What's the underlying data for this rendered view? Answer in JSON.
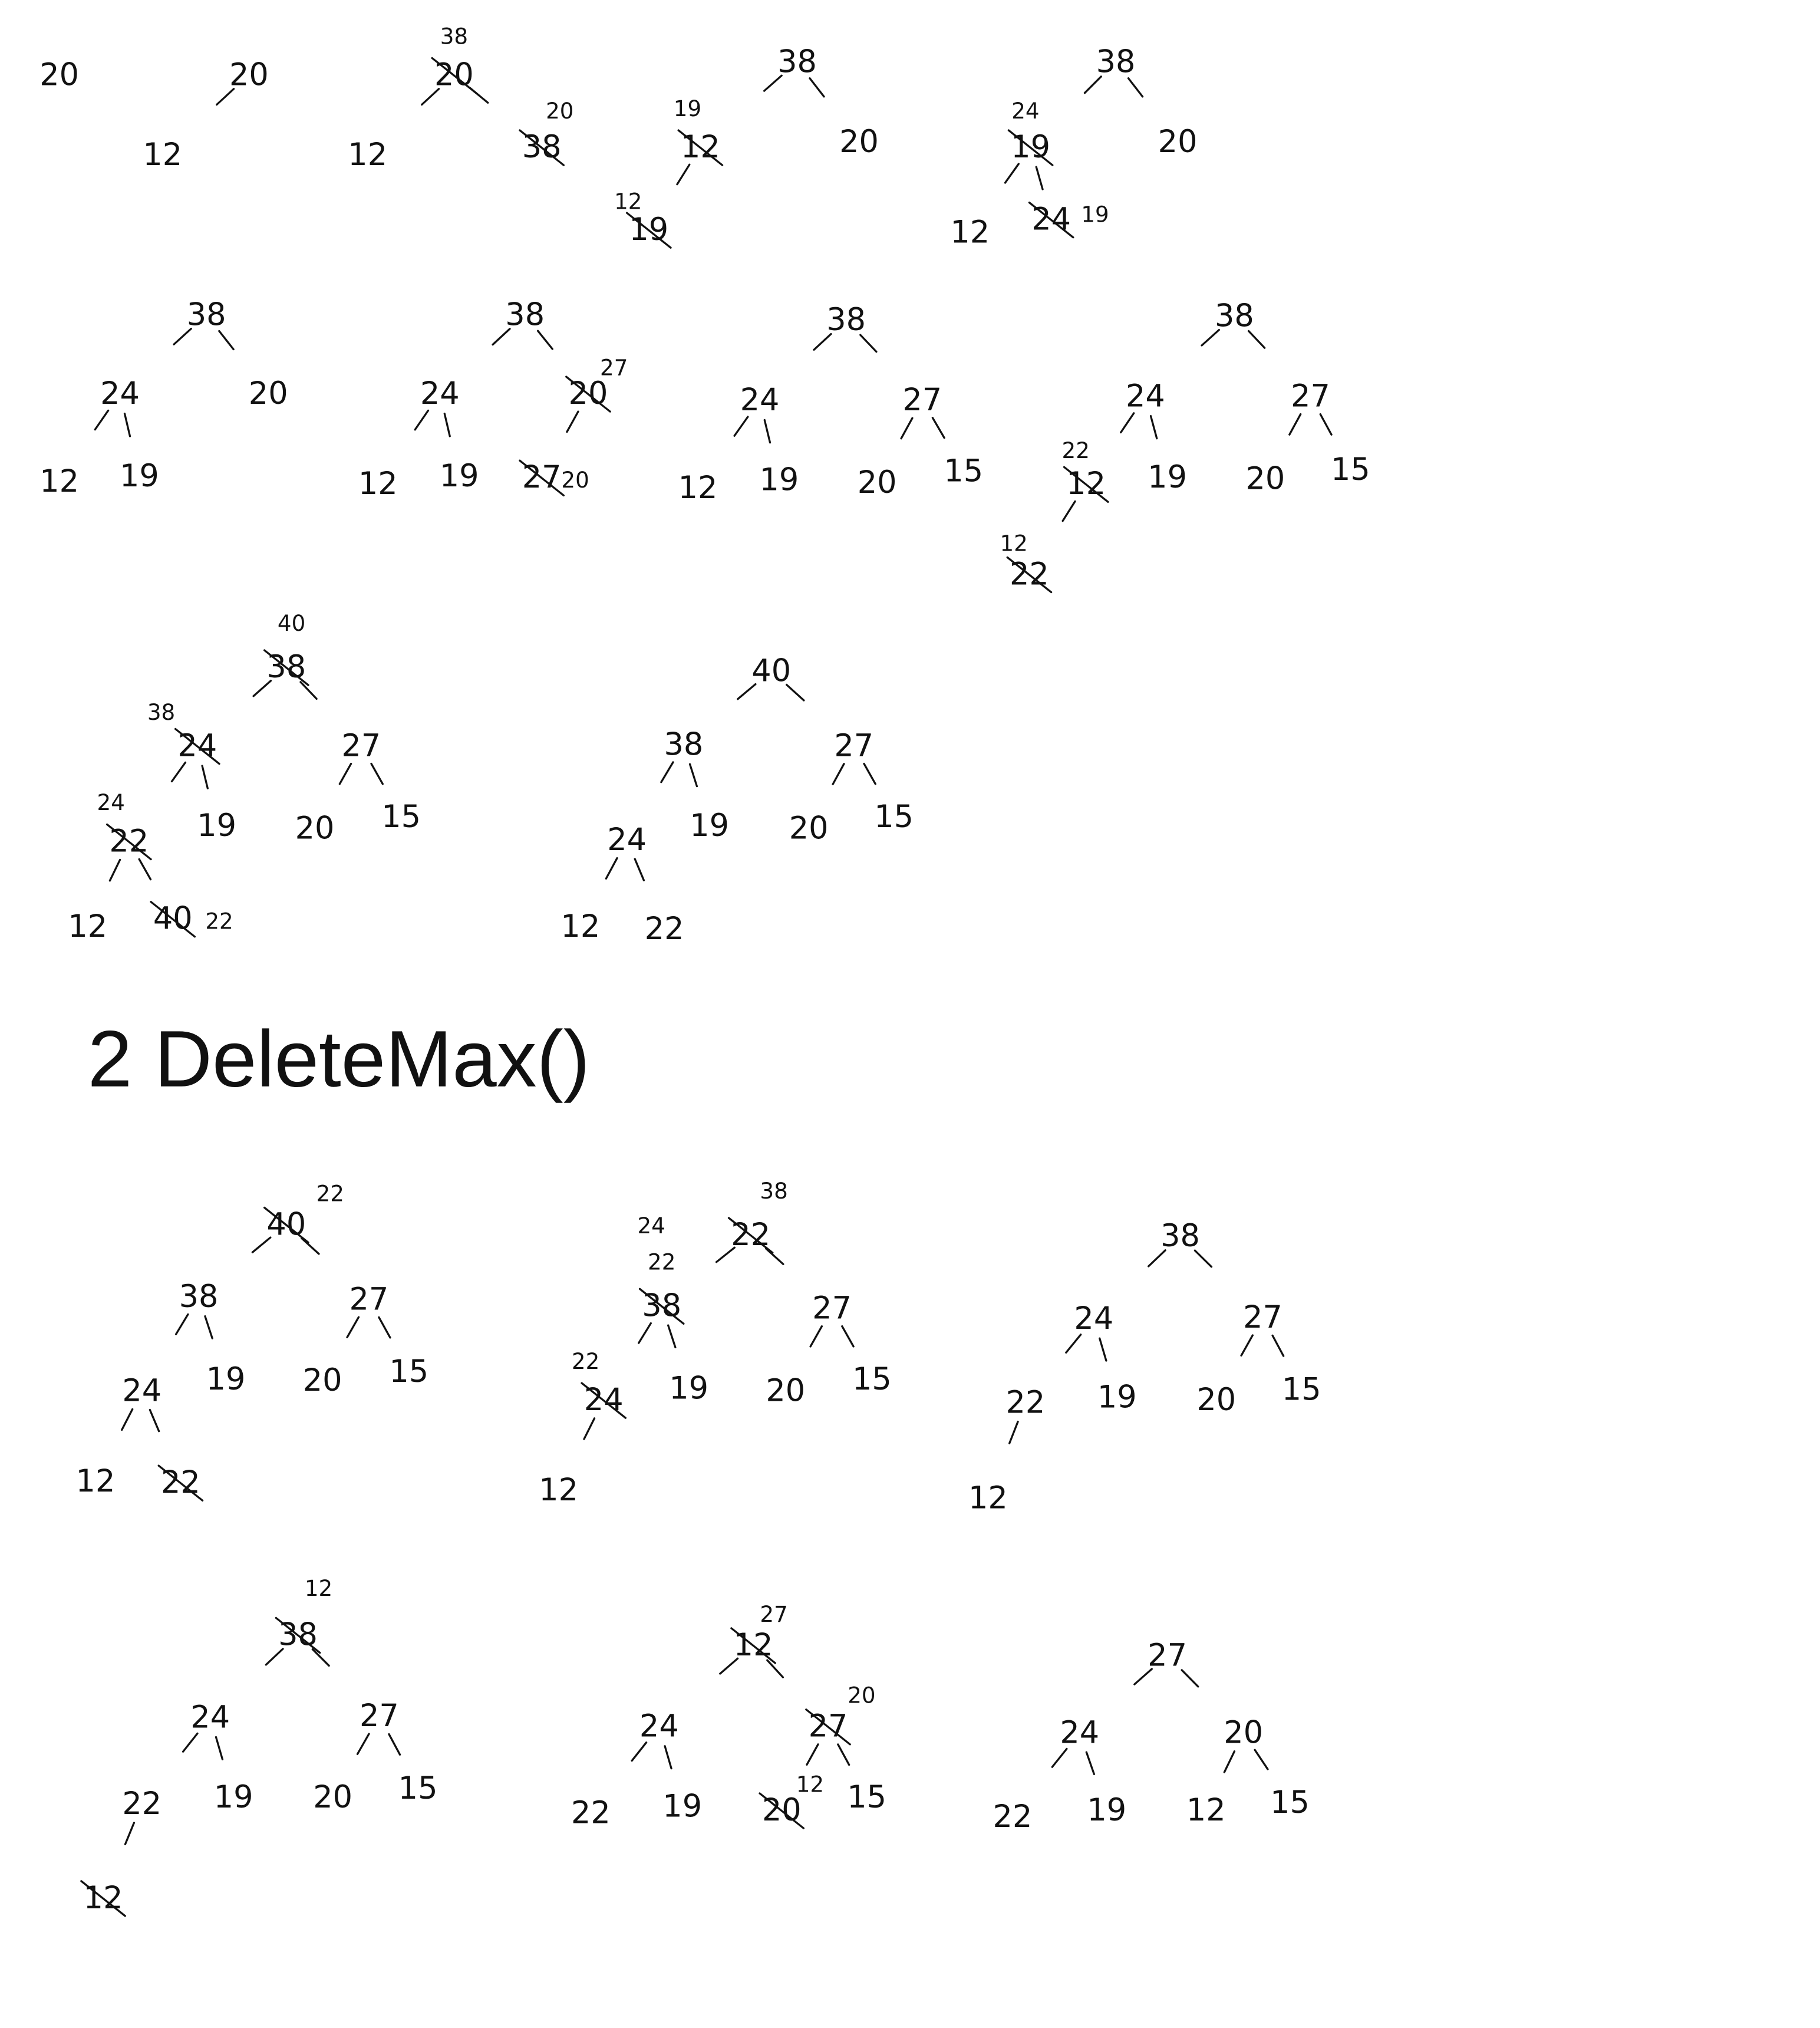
{
  "heading": "2 DeleteMax()",
  "insert_steps": [
    {
      "id": "i1",
      "nodes": [
        {
          "v": "20"
        }
      ]
    },
    {
      "id": "i2",
      "nodes": [
        {
          "v": "20"
        },
        {
          "v": "12"
        }
      ]
    },
    {
      "id": "i3",
      "nodes": [
        {
          "v": "20",
          "crossed": true,
          "note": "38"
        },
        {
          "v": "12"
        },
        {
          "v": "38",
          "crossed": true,
          "note": "20"
        }
      ]
    },
    {
      "id": "i4",
      "nodes": [
        {
          "v": "38"
        },
        {
          "v": "12",
          "crossed": true,
          "note": "19"
        },
        {
          "v": "20"
        },
        {
          "v": "19",
          "crossed": true,
          "note": "12"
        }
      ]
    },
    {
      "id": "i5",
      "nodes": [
        {
          "v": "38"
        },
        {
          "v": "19",
          "crossed": true,
          "note": "24"
        },
        {
          "v": "20"
        },
        {
          "v": "12"
        },
        {
          "v": "24",
          "crossed": true,
          "note": "19"
        }
      ]
    },
    {
      "id": "i6",
      "nodes": [
        {
          "v": "38"
        },
        {
          "v": "24"
        },
        {
          "v": "20"
        },
        {
          "v": "12"
        },
        {
          "v": "19"
        }
      ]
    },
    {
      "id": "i7",
      "nodes": [
        {
          "v": "38"
        },
        {
          "v": "24"
        },
        {
          "v": "20",
          "crossed": true,
          "note": "27"
        },
        {
          "v": "12"
        },
        {
          "v": "19"
        },
        {
          "v": "27",
          "crossed": true,
          "note": "20"
        }
      ]
    },
    {
      "id": "i8",
      "nodes": [
        {
          "v": "38"
        },
        {
          "v": "24"
        },
        {
          "v": "27"
        },
        {
          "v": "12"
        },
        {
          "v": "19"
        },
        {
          "v": "20"
        },
        {
          "v": "15"
        }
      ]
    },
    {
      "id": "i9",
      "nodes": [
        {
          "v": "38"
        },
        {
          "v": "24"
        },
        {
          "v": "27"
        },
        {
          "v": "12",
          "crossed": true,
          "note": "22"
        },
        {
          "v": "19"
        },
        {
          "v": "20"
        },
        {
          "v": "15"
        },
        {
          "v": "22",
          "crossed": true,
          "note": "12"
        }
      ]
    },
    {
      "id": "i10",
      "nodes": [
        {
          "v": "38",
          "crossed": true,
          "note": "40"
        },
        {
          "v": "24",
          "crossed": true,
          "note": "38"
        },
        {
          "v": "27"
        },
        {
          "v": "22",
          "crossed": true,
          "note": "24"
        },
        {
          "v": "19"
        },
        {
          "v": "20"
        },
        {
          "v": "15"
        },
        {
          "v": "12"
        },
        {
          "v": "40",
          "crossed": true,
          "note": "22"
        }
      ]
    },
    {
      "id": "i11",
      "nodes": [
        {
          "v": "40"
        },
        {
          "v": "38"
        },
        {
          "v": "27"
        },
        {
          "v": "24"
        },
        {
          "v": "19"
        },
        {
          "v": "20"
        },
        {
          "v": "15"
        },
        {
          "v": "12"
        },
        {
          "v": "22"
        }
      ]
    }
  ],
  "delete_steps": [
    {
      "id": "d1",
      "nodes": [
        {
          "v": "40",
          "crossed": true,
          "note": "22"
        },
        {
          "v": "38"
        },
        {
          "v": "27"
        },
        {
          "v": "24"
        },
        {
          "v": "19"
        },
        {
          "v": "20"
        },
        {
          "v": "15"
        },
        {
          "v": "12"
        },
        {
          "v": "22",
          "crossed": true
        }
      ]
    },
    {
      "id": "d2",
      "nodes": [
        {
          "v": "22",
          "crossed": true,
          "note": "38"
        },
        {
          "v": "38",
          "crossed": true,
          "notes": [
            "24",
            "22"
          ]
        },
        {
          "v": "27"
        },
        {
          "v": "24",
          "crossed": true,
          "note": "22"
        },
        {
          "v": "19"
        },
        {
          "v": "20"
        },
        {
          "v": "15"
        },
        {
          "v": "12"
        }
      ]
    },
    {
      "id": "d3",
      "nodes": [
        {
          "v": "38"
        },
        {
          "v": "24"
        },
        {
          "v": "27"
        },
        {
          "v": "22"
        },
        {
          "v": "19"
        },
        {
          "v": "20"
        },
        {
          "v": "15"
        },
        {
          "v": "12"
        }
      ]
    },
    {
      "id": "d4",
      "nodes": [
        {
          "v": "38",
          "crossed": true,
          "note": "12"
        },
        {
          "v": "24"
        },
        {
          "v": "27"
        },
        {
          "v": "22"
        },
        {
          "v": "19"
        },
        {
          "v": "20"
        },
        {
          "v": "15"
        },
        {
          "v": "12",
          "crossed": true
        }
      ]
    },
    {
      "id": "d5",
      "nodes": [
        {
          "v": "12",
          "crossed": true,
          "note": "27"
        },
        {
          "v": "24"
        },
        {
          "v": "27",
          "crossed": true,
          "note": "20"
        },
        {
          "v": "22"
        },
        {
          "v": "19"
        },
        {
          "v": "20",
          "crossed": true,
          "note": "12"
        },
        {
          "v": "15"
        }
      ]
    },
    {
      "id": "d6",
      "nodes": [
        {
          "v": "27"
        },
        {
          "v": "24"
        },
        {
          "v": "20"
        },
        {
          "v": "22"
        },
        {
          "v": "19"
        },
        {
          "v": "12"
        },
        {
          "v": "15"
        }
      ]
    }
  ]
}
